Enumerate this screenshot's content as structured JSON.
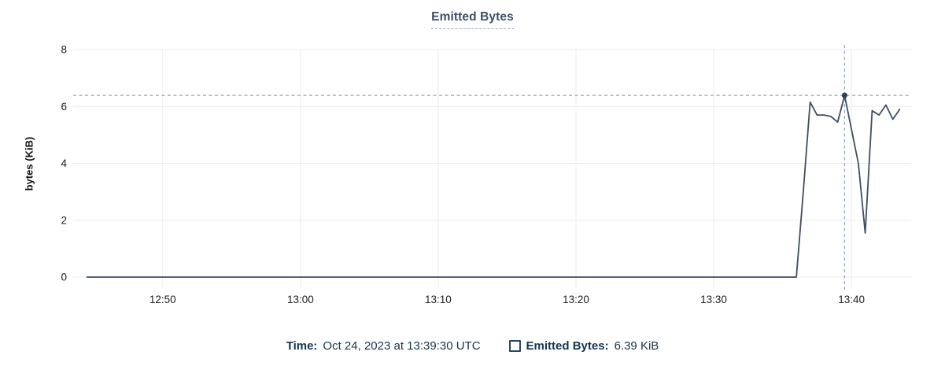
{
  "colors": {
    "title": "#3d4f69",
    "title_underline": "#9fabbc",
    "line": "#3d4e66",
    "point": "#2e4157",
    "crosshair": "#97a7ba",
    "grid": "#ececec",
    "tick_label": "#202020",
    "axis_label": "#111111",
    "legend_text": "#16344f",
    "checkbox_border": "#2a4763"
  },
  "chart_data": {
    "type": "line",
    "title": "Emitted Bytes",
    "ylabel": "bytes (KiB)",
    "ylim": [
      0,
      8
    ],
    "y_ticks": [
      0,
      2,
      4,
      6,
      8
    ],
    "x_ticks": [
      "12:50",
      "13:00",
      "13:10",
      "13:20",
      "13:30",
      "13:40"
    ],
    "x_domain": [
      "12:43:30",
      "13:44:20"
    ],
    "grid": true,
    "legend_position": "bottom",
    "series": [
      {
        "name": "Emitted Bytes",
        "color": "#3d4e66",
        "points": [
          {
            "t": "12:44:30",
            "v": 0
          },
          {
            "t": "13:36:00",
            "v": 0
          },
          {
            "t": "13:36:30",
            "v": 3.0
          },
          {
            "t": "13:37:00",
            "v": 6.15
          },
          {
            "t": "13:37:30",
            "v": 5.7
          },
          {
            "t": "13:38:00",
            "v": 5.7
          },
          {
            "t": "13:38:30",
            "v": 5.65
          },
          {
            "t": "13:39:00",
            "v": 5.45
          },
          {
            "t": "13:39:30",
            "v": 6.39
          },
          {
            "t": "13:40:00",
            "v": 5.2
          },
          {
            "t": "13:40:30",
            "v": 4.0
          },
          {
            "t": "13:41:00",
            "v": 1.55
          },
          {
            "t": "13:41:30",
            "v": 5.85
          },
          {
            "t": "13:42:00",
            "v": 5.7
          },
          {
            "t": "13:42:30",
            "v": 6.05
          },
          {
            "t": "13:43:00",
            "v": 5.55
          },
          {
            "t": "13:43:30",
            "v": 5.9
          }
        ]
      }
    ],
    "hover": {
      "time": "13:39:30",
      "value": 6.39,
      "value_label": "6.39 KiB"
    }
  },
  "footer": {
    "time_label": "Time:",
    "time_value": "Oct 24, 2023 at 13:39:30 UTC",
    "series_label": "Emitted Bytes:",
    "series_value": "6.39 KiB"
  }
}
